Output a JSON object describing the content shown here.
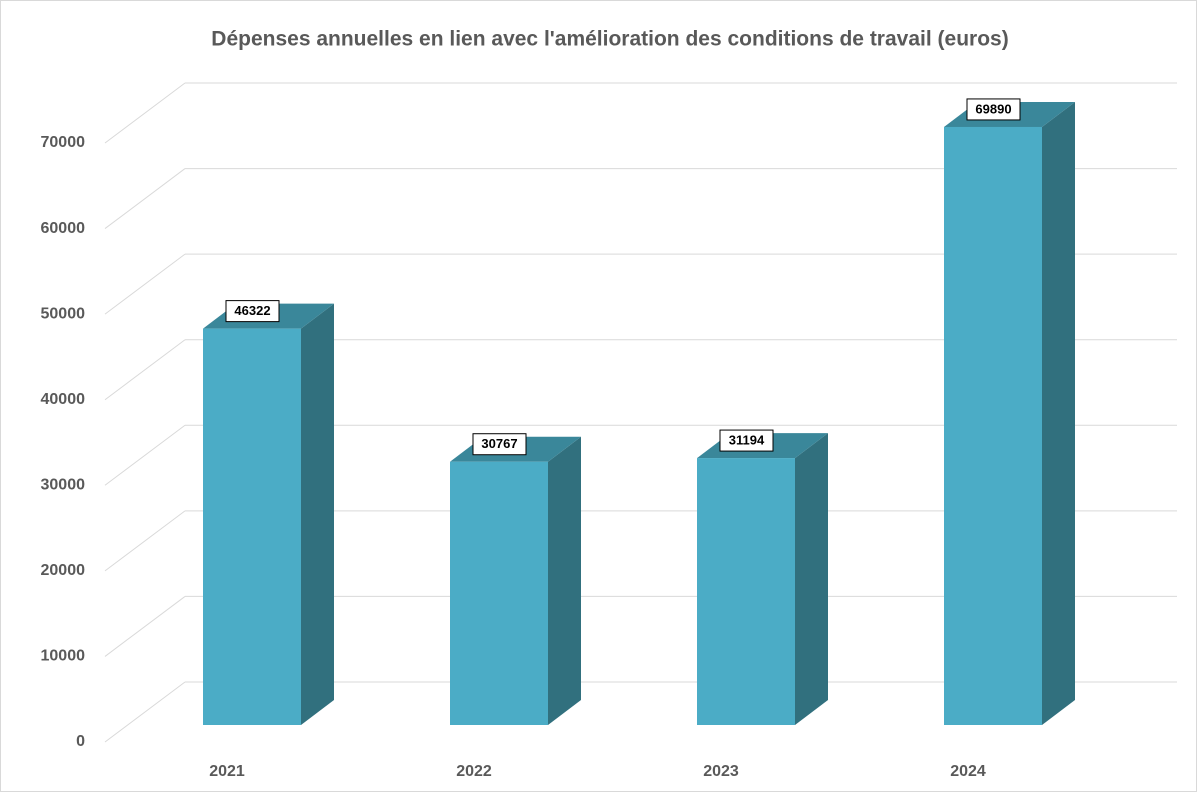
{
  "chart_data": {
    "type": "bar3d",
    "title": "Dépenses annuelles en lien avec l'amélioration des conditions de travail (euros)",
    "categories": [
      "2021",
      "2022",
      "2023",
      "2024"
    ],
    "values": [
      46322,
      30767,
      31194,
      69890
    ],
    "color": "#4bacc6",
    "ylim": [
      0,
      70000
    ],
    "yticks": [
      0,
      10000,
      20000,
      30000,
      40000,
      50000,
      60000,
      70000
    ],
    "grid": true
  }
}
